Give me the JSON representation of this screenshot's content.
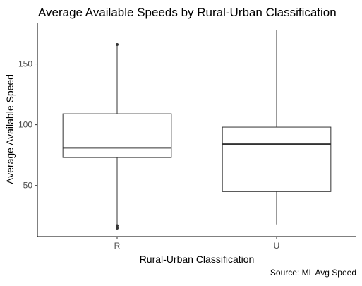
{
  "chart_data": {
    "type": "boxplot",
    "title": "Average Available Speeds by Rural-Urban Classification",
    "xlabel": "Rural-Urban Classification",
    "ylabel": "Average Available Speed",
    "caption": "Source: ML Avg Speed",
    "categories": [
      "R",
      "U"
    ],
    "ylim": [
      8,
      184
    ],
    "yticks": [
      50,
      100,
      150
    ],
    "grid": false,
    "boxes": [
      {
        "category": "R",
        "whisker_low": 18,
        "q1": 73,
        "median": 81,
        "q3": 109,
        "whisker_high": 165,
        "outliers": [
          15,
          17,
          166
        ]
      },
      {
        "category": "U",
        "whisker_low": 18,
        "q1": 45,
        "median": 84,
        "q3": 98,
        "whisker_high": 178,
        "outliers": []
      }
    ]
  }
}
